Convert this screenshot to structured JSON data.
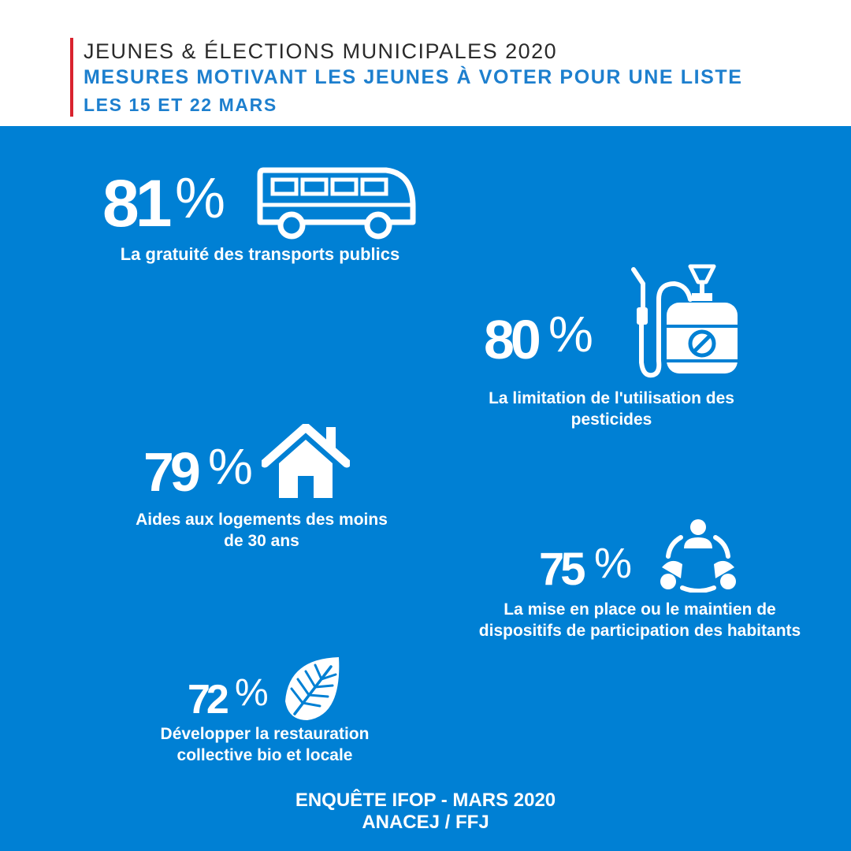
{
  "header": {
    "title": "JEUNES & ÉLECTIONS MUNICIPALES 2020",
    "subtitle": "MESURES MOTIVANT LES JEUNES À VOTER POUR UNE LISTE",
    "dates": "LES 15 ET 22 MARS"
  },
  "colors": {
    "accent_red": "#d9232e",
    "brand_blue": "#0080d4",
    "title_blue": "#1d7fce"
  },
  "stats": [
    {
      "value": "81",
      "unit": "%",
      "icon": "bus-icon",
      "label_lines": [
        "La gratuité des transports publics"
      ]
    },
    {
      "value": "80",
      "unit": "%",
      "icon": "pesticide-sprayer-icon",
      "label_lines": [
        "La limitation de l'utilisation des",
        "pesticides"
      ]
    },
    {
      "value": "79",
      "unit": "%",
      "icon": "house-icon",
      "label_lines": [
        "Aides aux logements des moins",
        "de 30 ans"
      ]
    },
    {
      "value": "75",
      "unit": "%",
      "icon": "participation-group-icon",
      "label_lines": [
        "La mise en place ou le maintien de",
        "dispositifs de participation des habitants"
      ]
    },
    {
      "value": "72",
      "unit": "%",
      "icon": "leaf-icon",
      "label_lines": [
        "Développer la restauration",
        "collective bio et locale"
      ]
    }
  ],
  "footer": {
    "source": "ENQUÊTE IFOP - MARS 2020",
    "org": "ANACEJ / FFJ"
  }
}
